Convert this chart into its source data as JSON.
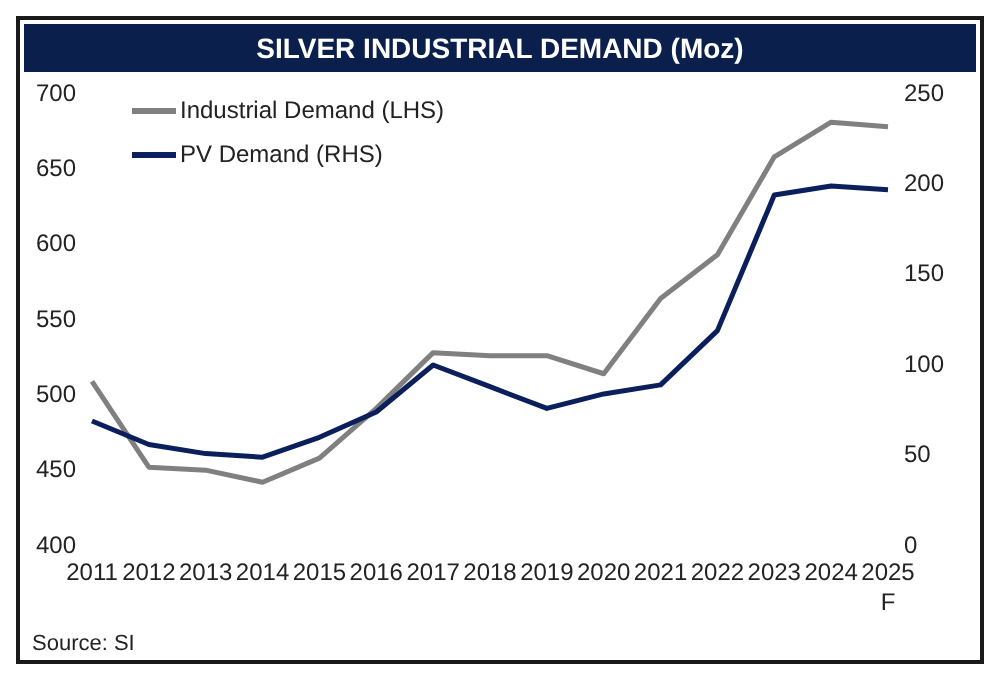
{
  "chart_data": {
    "type": "line",
    "title": "SILVER INDUSTRIAL DEMAND (Moz)",
    "categories": [
      "2011",
      "2012",
      "2013",
      "2014",
      "2015",
      "2016",
      "2017",
      "2018",
      "2019",
      "2020",
      "2021",
      "2022",
      "2023",
      "2024",
      "2025\nF"
    ],
    "series": [
      {
        "name": "Industrial Demand (LHS)",
        "color": "#808080",
        "values": [
          508,
          451,
          449,
          441,
          457,
          490,
          527,
          525,
          525,
          513,
          563,
          592,
          657,
          680,
          677
        ]
      },
      {
        "name": "PV Demand (RHS)",
        "color": "#0a1f5c",
        "axis": "y2",
        "values": [
          68,
          55,
          50,
          48,
          59,
          73,
          99,
          87,
          75,
          83,
          88,
          118,
          193,
          198,
          196
        ]
      }
    ],
    "ylim": [
      400,
      700
    ],
    "yticks": [
      400,
      450,
      500,
      550,
      600,
      650,
      700
    ],
    "y2lim": [
      0,
      250
    ],
    "y2ticks": [
      0,
      50,
      100,
      150,
      200,
      250
    ],
    "legend": "top left",
    "marker": "none",
    "line_style": "solid",
    "annotations": [
      "Source: SI"
    ]
  }
}
